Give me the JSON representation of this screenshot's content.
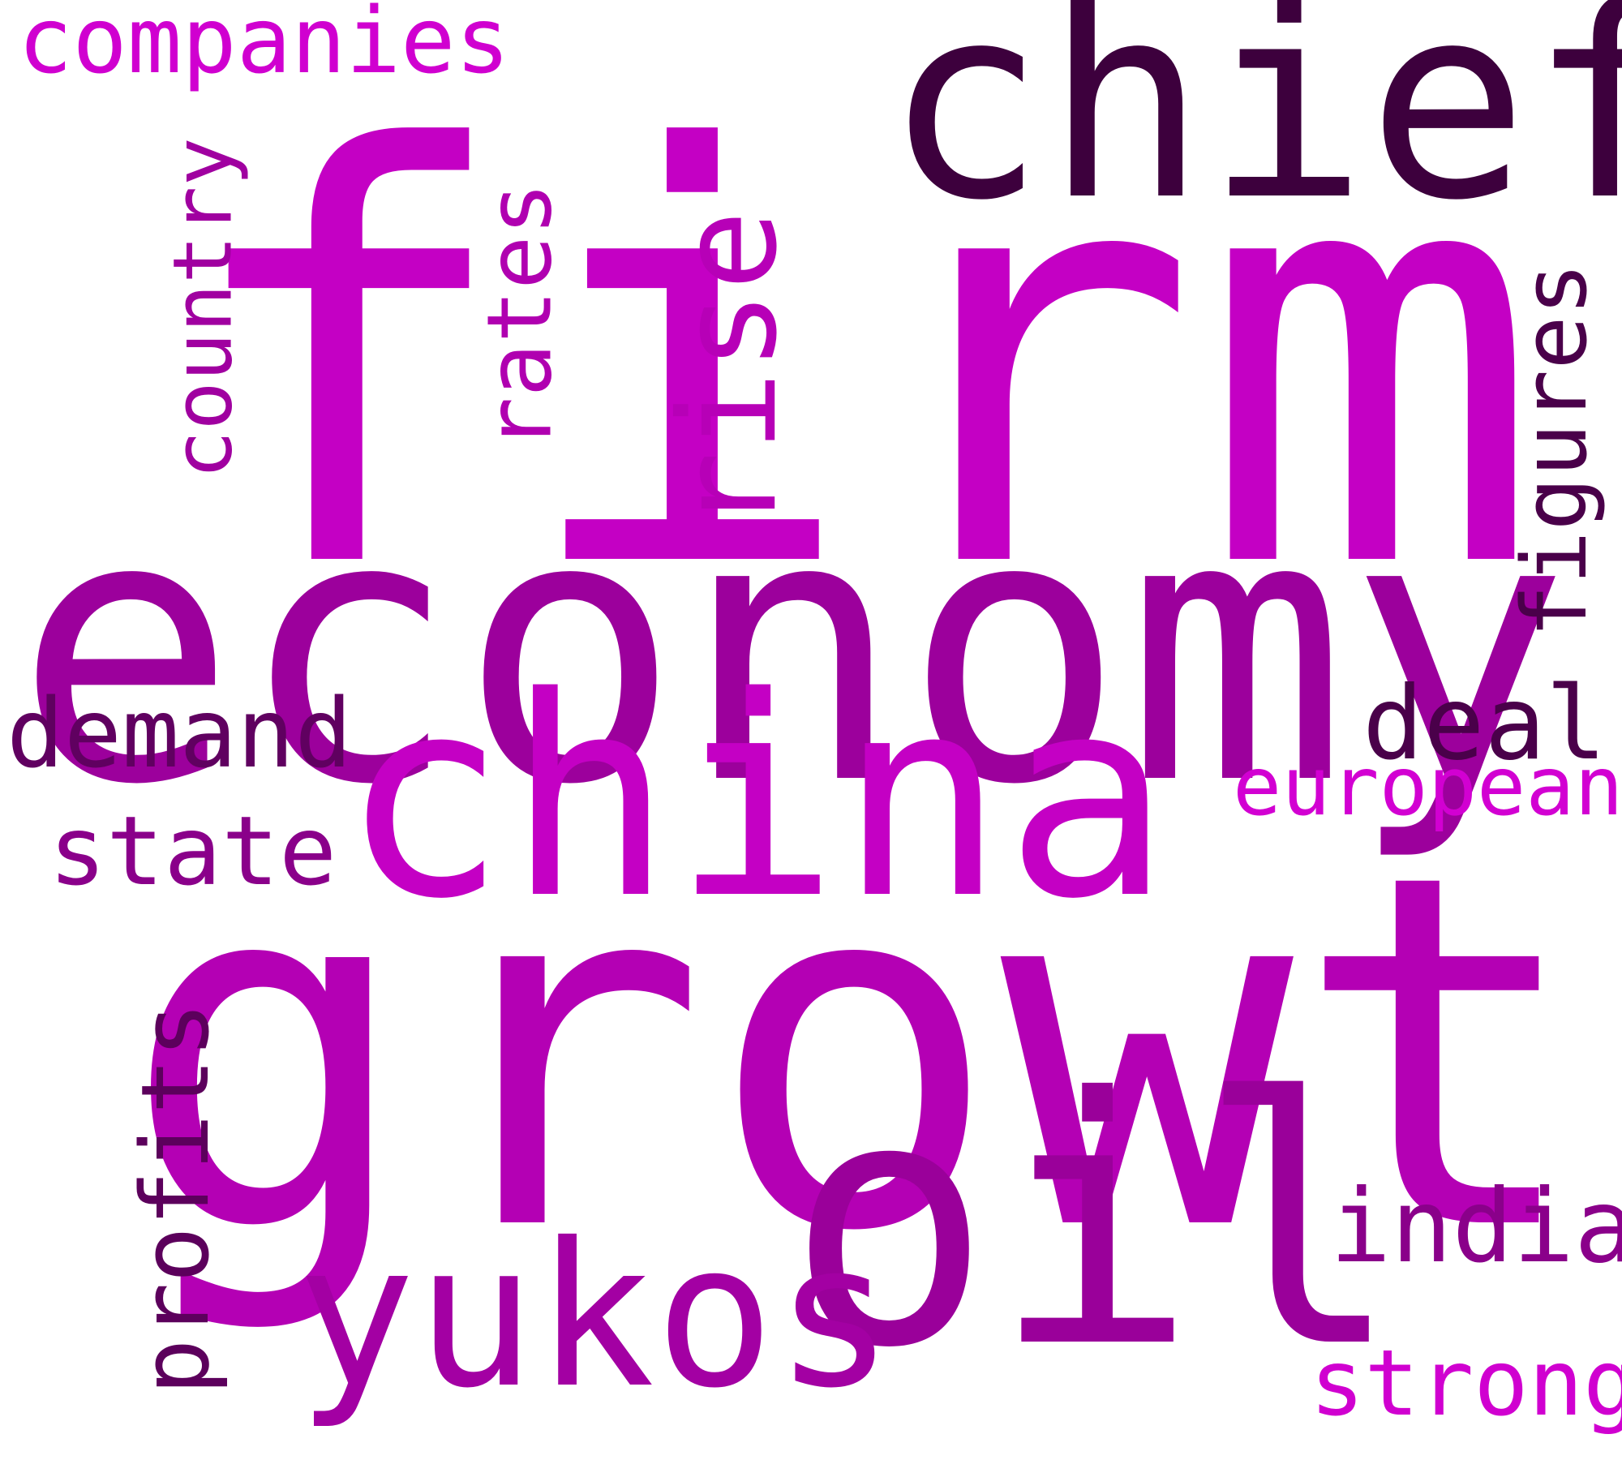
{
  "words": {
    "firm": {
      "text": "firm",
      "color": "#c400c4"
    },
    "chief": {
      "text": "chief",
      "color": "#3d003d"
    },
    "economy": {
      "text": "economy",
      "color": "#9c009c"
    },
    "china": {
      "text": "china",
      "color": "#c400c4"
    },
    "growth": {
      "text": "growth",
      "color": "#b400b4"
    },
    "oil": {
      "text": "oil",
      "color": "#9a009a"
    },
    "yukos": {
      "text": "yukos",
      "color": "#a300a3"
    },
    "rise": {
      "text": "rise",
      "color": "#b700b7"
    },
    "rates": {
      "text": "rates",
      "color": "#b000b0"
    },
    "country": {
      "text": "country",
      "color": "#a000a0"
    },
    "figures": {
      "text": "figures",
      "color": "#4a004a"
    },
    "companies": {
      "text": "companies",
      "color": "#d000d0"
    },
    "demand": {
      "text": "demand",
      "color": "#600060"
    },
    "state": {
      "text": "state",
      "color": "#8a008a"
    },
    "deal": {
      "text": "deal",
      "color": "#4a004a"
    },
    "european": {
      "text": "european",
      "color": "#d200d2"
    },
    "profits": {
      "text": "profits",
      "color": "#5c005c"
    },
    "india": {
      "text": "india",
      "color": "#8a008a"
    },
    "strong": {
      "text": "strong",
      "color": "#d000d0"
    }
  }
}
